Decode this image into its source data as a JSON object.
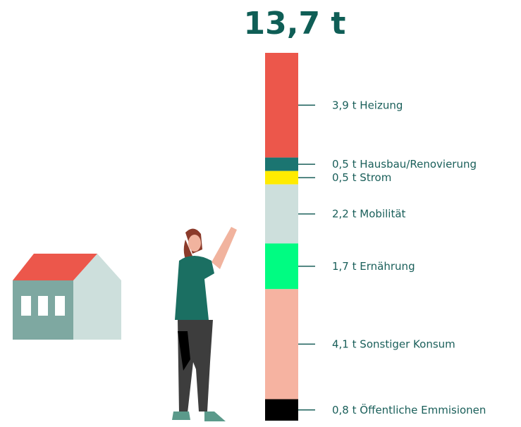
{
  "chart_data": {
    "type": "stacked-bar",
    "title": "13,7 t",
    "ylim": [
      0,
      13.7
    ],
    "series": [
      {
        "name": "Heizung",
        "color": "#ec574b",
        "values": [
          3.9
        ],
        "value_labels": [
          "3,9 t"
        ]
      },
      {
        "name": "Hausbau/Renovierung",
        "color": "#1b7571",
        "values": [
          0.5
        ],
        "value_labels": [
          "0,5 t"
        ]
      },
      {
        "name": "Strom",
        "color": "#ffeb00",
        "values": [
          0.5
        ],
        "value_labels": [
          "0,5 t"
        ]
      },
      {
        "name": "Mobilität",
        "color": "#cddfdc",
        "values": [
          2.2
        ],
        "value_labels": [
          "2,2 t"
        ]
      },
      {
        "name": "Ernährung",
        "color": "#00fc82",
        "values": [
          1.7
        ],
        "value_labels": [
          "1,7 t"
        ]
      },
      {
        "name": "Sonstiger Konsum",
        "color": "#f6b3a1",
        "values": [
          4.1
        ],
        "value_labels": [
          "4,1 t"
        ]
      },
      {
        "name": "Öffentliche Emmisionen",
        "color": "#000000",
        "values": [
          0.8
        ],
        "value_labels": [
          "0,8 t"
        ]
      }
    ]
  }
}
